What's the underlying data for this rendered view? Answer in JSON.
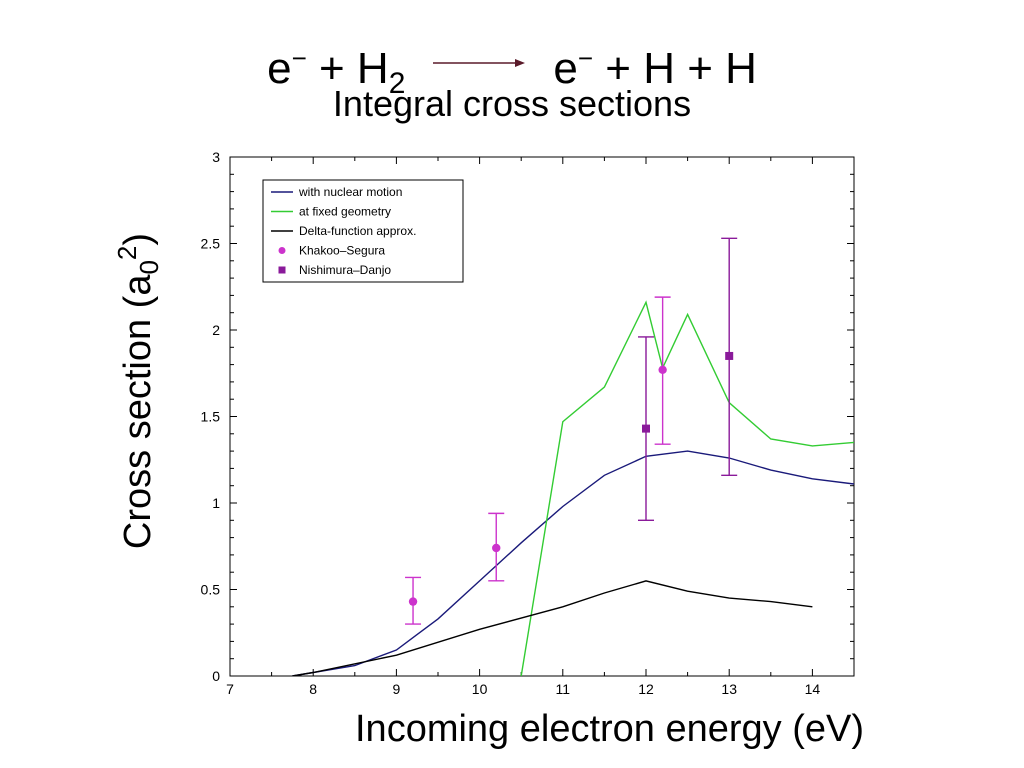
{
  "header": {
    "reaction_lhs_particle": "e",
    "reaction_lhs_charge": "−",
    "reaction_plus_1": "+ H",
    "reaction_lhs_subscript": "2",
    "reaction_rhs_particle": "e",
    "reaction_rhs_charge": "−",
    "reaction_rhs_rest": "+ H + H",
    "subtitle": "Integral cross sections",
    "arrow_color": "#5a1a2a"
  },
  "axes": {
    "xlabel": "Incoming electron energy (eV)",
    "ylabel_main": "Cross section (a",
    "ylabel_sub": "0",
    "ylabel_sup": "2",
    "ylabel_close": ")"
  },
  "chart_data": {
    "type": "line",
    "xlim": [
      7,
      14.5
    ],
    "ylim": [
      0,
      3
    ],
    "xticks": [
      7,
      8,
      9,
      10,
      11,
      12,
      13,
      14
    ],
    "yticks": [
      0,
      0.5,
      1,
      1.5,
      2,
      2.5,
      3
    ],
    "ytick_labels": [
      "0",
      "0.5",
      "1",
      "1.5",
      "2",
      "2.5",
      "3"
    ],
    "grid": false,
    "legend_position": "top-left",
    "series": [
      {
        "name": "with nuclear motion",
        "color": "#1a1a7a",
        "style": "line",
        "x": [
          7.75,
          8.0,
          8.5,
          9.0,
          9.5,
          10.0,
          10.5,
          11.0,
          11.5,
          12.0,
          12.5,
          13.0,
          13.5,
          14.0,
          14.5
        ],
        "y": [
          0.0,
          0.02,
          0.06,
          0.15,
          0.33,
          0.55,
          0.77,
          0.98,
          1.16,
          1.27,
          1.3,
          1.26,
          1.19,
          1.14,
          1.11
        ]
      },
      {
        "name": "at fixed geometry",
        "color": "#33cc33",
        "style": "line",
        "x": [
          10.5,
          11.0,
          11.5,
          12.0,
          12.2,
          12.5,
          13.0,
          13.5,
          14.0,
          14.5
        ],
        "y": [
          0.0,
          1.47,
          1.67,
          2.16,
          1.78,
          2.09,
          1.58,
          1.37,
          1.33,
          1.35
        ]
      },
      {
        "name": "Delta-function approx.",
        "color": "#000000",
        "style": "line",
        "x": [
          7.75,
          8.0,
          9.0,
          10.0,
          11.0,
          11.5,
          12.0,
          12.5,
          13.0,
          13.5,
          14.0
        ],
        "y": [
          0.0,
          0.02,
          0.12,
          0.27,
          0.4,
          0.48,
          0.55,
          0.49,
          0.45,
          0.43,
          0.4
        ]
      },
      {
        "name": "Khakoo–Segura",
        "color": "#cc33cc",
        "style": "markers-circle",
        "x": [
          9.2,
          10.2,
          12.2
        ],
        "y": [
          0.43,
          0.74,
          1.77
        ],
        "yerr_low": [
          0.3,
          0.55,
          1.34
        ],
        "yerr_high": [
          0.57,
          0.94,
          2.19
        ]
      },
      {
        "name": "Nishimura–Danjo",
        "color": "#8a1a9a",
        "style": "markers-square",
        "x": [
          12.0,
          13.0
        ],
        "y": [
          1.43,
          1.85
        ],
        "yerr_low": [
          0.9,
          1.16
        ],
        "yerr_high": [
          1.96,
          2.53
        ]
      }
    ]
  }
}
